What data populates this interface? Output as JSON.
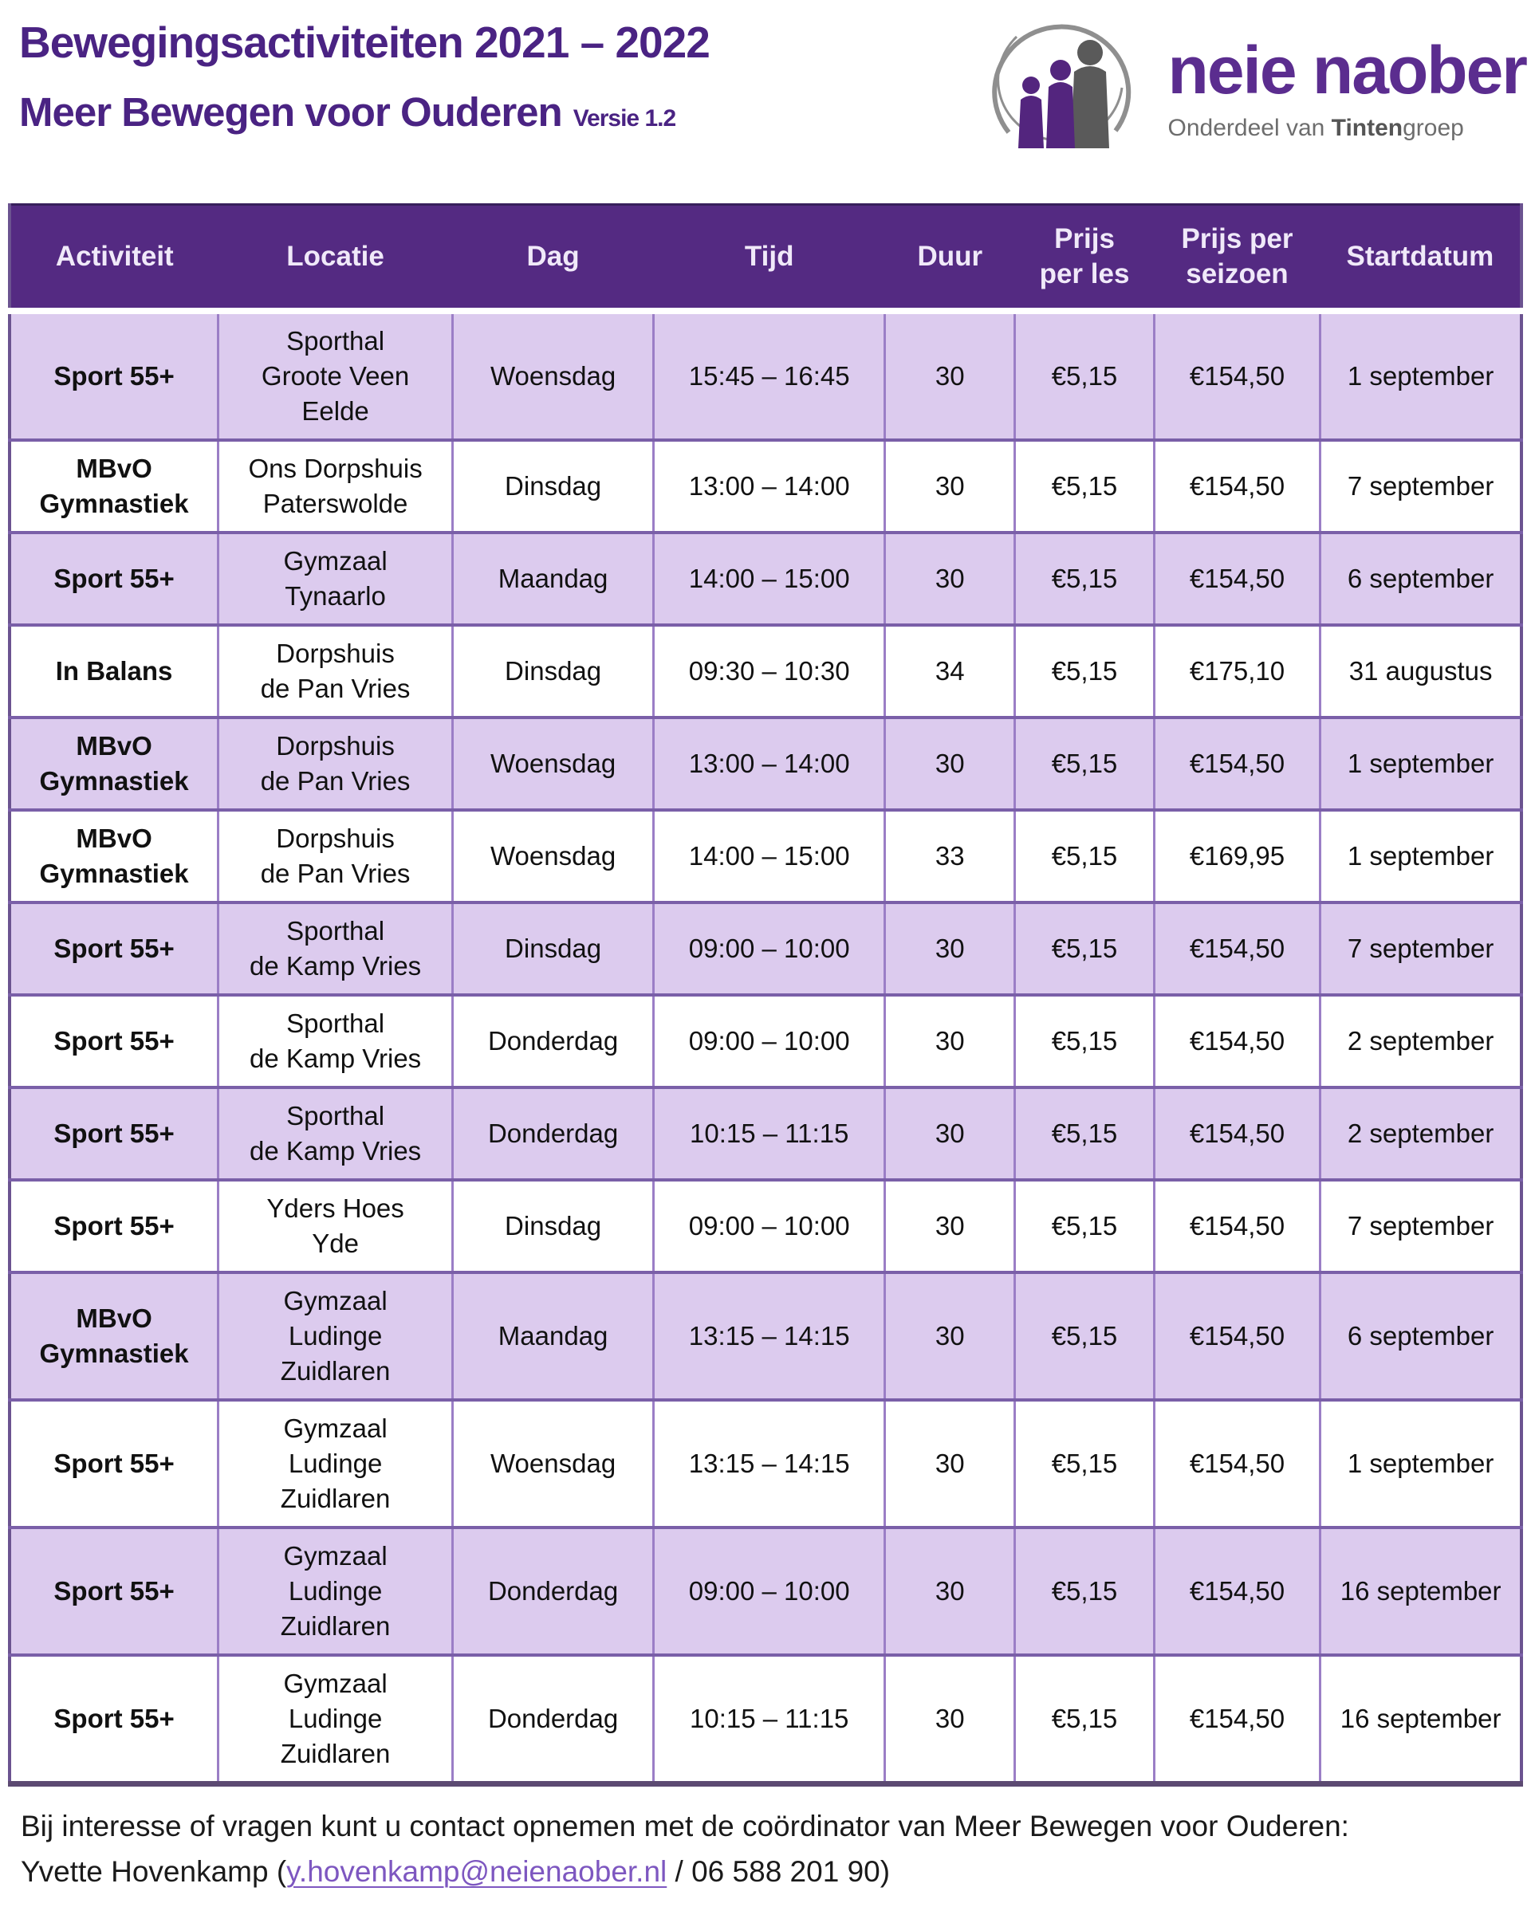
{
  "page": {
    "title_line1": "Bewegingsactiviteiten 2021 – 2022",
    "title_line2": "Meer Bewegen voor Ouderen",
    "version": "Versie 1.2"
  },
  "logo": {
    "wordmark": "neie naober",
    "tagline_prefix": "Onderdeel van ",
    "tagline_bold": "Tinten",
    "tagline_suffix": "groep",
    "people_icon": "logo-people-in-circle-icon"
  },
  "colors": {
    "title_purple": "#4a2383",
    "header_bg": "#542a82",
    "header_text": "#f0e9f9",
    "row_lavender": "#dccbee",
    "row_white": "#ffffff",
    "grid_border": "#9b7ec6",
    "row_separator": "#7a5fa8",
    "link_purple": "#7d57c0",
    "logo_purple": "#5b2d8f",
    "logo_gray": "#5a5a5a"
  },
  "table": {
    "columns": [
      {
        "key": "activiteit",
        "label": "Activiteit"
      },
      {
        "key": "locatie",
        "label": "Locatie"
      },
      {
        "key": "dag",
        "label": "Dag"
      },
      {
        "key": "tijd",
        "label": "Tijd"
      },
      {
        "key": "duur",
        "label": "Duur"
      },
      {
        "key": "prijs_per_les",
        "label": "Prijs\nper les"
      },
      {
        "key": "prijs_per_seizoen",
        "label": "Prijs per\nseizoen"
      },
      {
        "key": "startdatum",
        "label": "Startdatum"
      }
    ],
    "rows": [
      {
        "activiteit": "Sport 55+",
        "locatie": "Sporthal\nGroote Veen\nEelde",
        "dag": "Woensdag",
        "tijd": "15:45 – 16:45",
        "duur": "30",
        "prijs_per_les": "€5,15",
        "prijs_per_seizoen": "€154,50",
        "startdatum": "1 september"
      },
      {
        "activiteit": "MBvO\nGymnastiek",
        "locatie": "Ons Dorpshuis\nPaterswolde",
        "dag": "Dinsdag",
        "tijd": "13:00 – 14:00",
        "duur": "30",
        "prijs_per_les": "€5,15",
        "prijs_per_seizoen": "€154,50",
        "startdatum": "7 september"
      },
      {
        "activiteit": "Sport 55+",
        "locatie": "Gymzaal\nTynaarlo",
        "dag": "Maandag",
        "tijd": "14:00 – 15:00",
        "duur": "30",
        "prijs_per_les": "€5,15",
        "prijs_per_seizoen": "€154,50",
        "startdatum": "6 september"
      },
      {
        "activiteit": "In Balans",
        "locatie": "Dorpshuis\nde Pan Vries",
        "dag": "Dinsdag",
        "tijd": "09:30 – 10:30",
        "duur": "34",
        "prijs_per_les": "€5,15",
        "prijs_per_seizoen": "€175,10",
        "startdatum": "31 augustus"
      },
      {
        "activiteit": "MBvO\nGymnastiek",
        "locatie": "Dorpshuis\nde Pan Vries",
        "dag": "Woensdag",
        "tijd": "13:00 – 14:00",
        "duur": "30",
        "prijs_per_les": "€5,15",
        "prijs_per_seizoen": "€154,50",
        "startdatum": "1 september"
      },
      {
        "activiteit": "MBvO\nGymnastiek",
        "locatie": "Dorpshuis\nde Pan Vries",
        "dag": "Woensdag",
        "tijd": "14:00 – 15:00",
        "duur": "33",
        "prijs_per_les": "€5,15",
        "prijs_per_seizoen": "€169,95",
        "startdatum": "1 september"
      },
      {
        "activiteit": "Sport 55+",
        "locatie": "Sporthal\nde Kamp Vries",
        "dag": "Dinsdag",
        "tijd": "09:00 – 10:00",
        "duur": "30",
        "prijs_per_les": "€5,15",
        "prijs_per_seizoen": "€154,50",
        "startdatum": "7 september"
      },
      {
        "activiteit": "Sport 55+",
        "locatie": "Sporthal\nde Kamp Vries",
        "dag": "Donderdag",
        "tijd": "09:00 – 10:00",
        "duur": "30",
        "prijs_per_les": "€5,15",
        "prijs_per_seizoen": "€154,50",
        "startdatum": "2 september"
      },
      {
        "activiteit": "Sport 55+",
        "locatie": "Sporthal\nde Kamp Vries",
        "dag": "Donderdag",
        "tijd": "10:15 – 11:15",
        "duur": "30",
        "prijs_per_les": "€5,15",
        "prijs_per_seizoen": "€154,50",
        "startdatum": "2 september"
      },
      {
        "activiteit": "Sport 55+",
        "locatie": "Yders Hoes\nYde",
        "dag": "Dinsdag",
        "tijd": "09:00 – 10:00",
        "duur": "30",
        "prijs_per_les": "€5,15",
        "prijs_per_seizoen": "€154,50",
        "startdatum": "7 september"
      },
      {
        "activiteit": "MBvO\nGymnastiek",
        "locatie": "Gymzaal\nLudinge\nZuidlaren",
        "dag": "Maandag",
        "tijd": "13:15 – 14:15",
        "duur": "30",
        "prijs_per_les": "€5,15",
        "prijs_per_seizoen": "€154,50",
        "startdatum": "6 september"
      },
      {
        "activiteit": "Sport 55+",
        "locatie": "Gymzaal\nLudinge\nZuidlaren",
        "dag": "Woensdag",
        "tijd": "13:15 – 14:15",
        "duur": "30",
        "prijs_per_les": "€5,15",
        "prijs_per_seizoen": "€154,50",
        "startdatum": "1 september"
      },
      {
        "activiteit": "Sport 55+",
        "locatie": "Gymzaal\nLudinge\nZuidlaren",
        "dag": "Donderdag",
        "tijd": "09:00 – 10:00",
        "duur": "30",
        "prijs_per_les": "€5,15",
        "prijs_per_seizoen": "€154,50",
        "startdatum": "16 september"
      },
      {
        "activiteit": "Sport 55+",
        "locatie": "Gymzaal\nLudinge\nZuidlaren",
        "dag": "Donderdag",
        "tijd": "10:15 – 11:15",
        "duur": "30",
        "prijs_per_les": "€5,15",
        "prijs_per_seizoen": "€154,50",
        "startdatum": "16 september"
      }
    ]
  },
  "footer": {
    "line1": "Bij interesse of vragen kunt u contact opnemen met de coördinator van Meer Bewegen voor Ouderen:",
    "line2_prefix": "Yvette Hovenkamp (",
    "email": "y.hovenkamp@neienaober.nl",
    "line2_suffix": " / 06 588 201 90)"
  }
}
